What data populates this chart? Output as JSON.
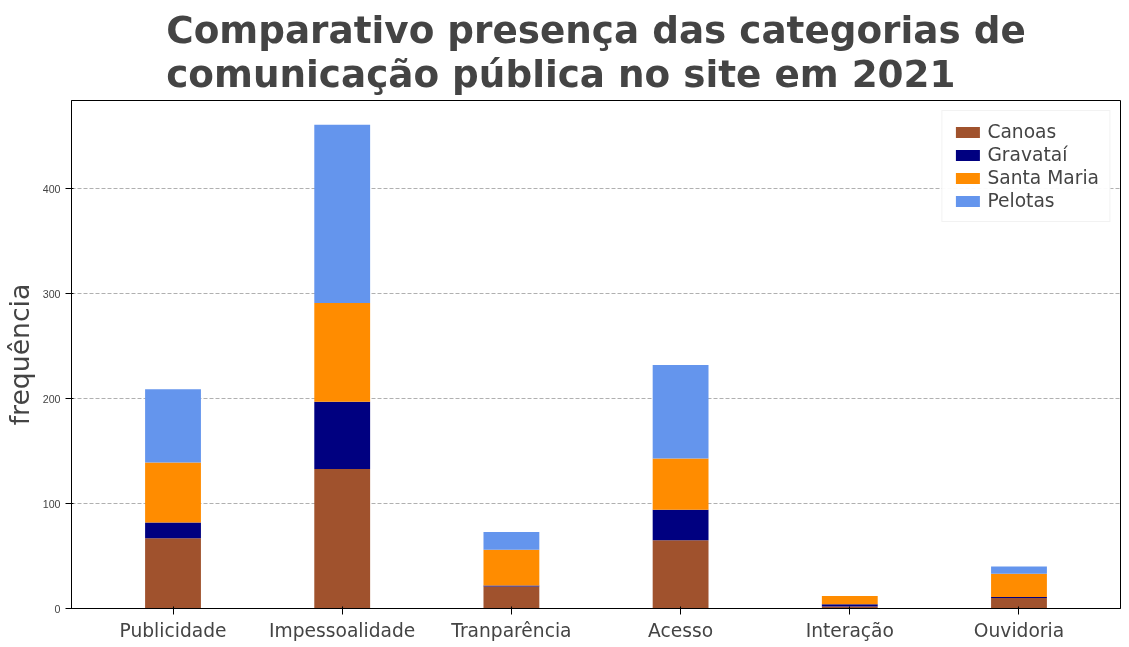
{
  "chart_data": {
    "type": "bar",
    "title": "Comparativo presença das categorias de\n comunicação pública no site em 2021",
    "ylabel": "frequência",
    "categories": [
      "Publicidade",
      "Impessoalidade",
      "Tranparência",
      "Acesso",
      "Interação",
      "Ouvidoria"
    ],
    "stacked": true,
    "series": [
      {
        "name": "Canoas",
        "color": "#a0522d",
        "values": [
          67,
          133,
          21,
          65,
          2,
          10
        ]
      },
      {
        "name": "Gravataí",
        "color": "#000080",
        "values": [
          15,
          64,
          1,
          29,
          2,
          1
        ]
      },
      {
        "name": "Santa Maria",
        "color": "#ff8c00",
        "values": [
          57,
          94,
          34,
          49,
          8,
          22
        ]
      },
      {
        "name": "Pelotas",
        "color": "#6495ed",
        "values": [
          70,
          170,
          17,
          89,
          0,
          7
        ]
      }
    ],
    "ylim": [
      0,
      484
    ],
    "yticks": [
      0,
      100,
      200,
      300,
      400
    ],
    "grid": "y",
    "legend": "top right"
  }
}
